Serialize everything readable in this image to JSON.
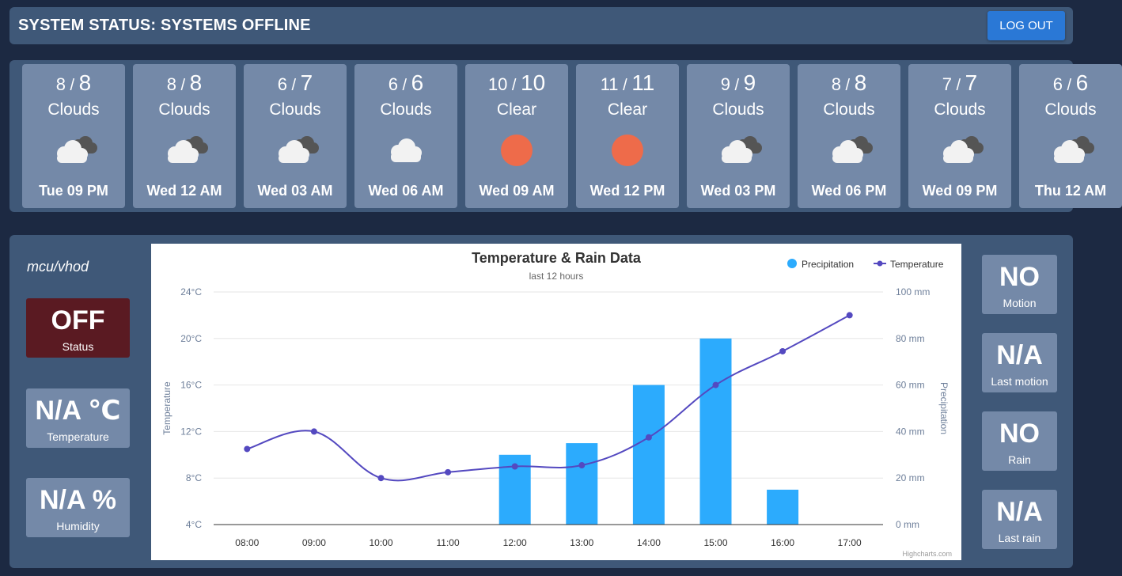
{
  "header": {
    "title": "SYSTEM STATUS: SYSTEMS OFFLINE",
    "logout_label": "LOG OUT"
  },
  "forecast": [
    {
      "low": "8",
      "high": "8",
      "condition": "Clouds",
      "icon": "cloud-sun-icon",
      "time": "Tue 09 PM"
    },
    {
      "low": "8",
      "high": "8",
      "condition": "Clouds",
      "icon": "cloud-sun-icon",
      "time": "Wed 12 AM"
    },
    {
      "low": "6",
      "high": "7",
      "condition": "Clouds",
      "icon": "cloud-sun-icon",
      "time": "Wed 03 AM"
    },
    {
      "low": "6",
      "high": "6",
      "condition": "Clouds",
      "icon": "cloud-icon",
      "time": "Wed 06 AM"
    },
    {
      "low": "10",
      "high": "10",
      "condition": "Clear",
      "icon": "sun-icon",
      "time": "Wed 09 AM"
    },
    {
      "low": "11",
      "high": "11",
      "condition": "Clear",
      "icon": "sun-icon",
      "time": "Wed 12 PM"
    },
    {
      "low": "9",
      "high": "9",
      "condition": "Clouds",
      "icon": "cloud-sun-icon",
      "time": "Wed 03 PM"
    },
    {
      "low": "8",
      "high": "8",
      "condition": "Clouds",
      "icon": "cloud-sun-icon",
      "time": "Wed 06 PM"
    },
    {
      "low": "7",
      "high": "7",
      "condition": "Clouds",
      "icon": "cloud-sun-icon",
      "time": "Wed 09 PM"
    },
    {
      "low": "6",
      "high": "6",
      "condition": "Clouds",
      "icon": "cloud-sun-icon",
      "time": "Thu 12 AM"
    }
  ],
  "device": {
    "topic": "mcu/vhod",
    "status": {
      "value": "OFF",
      "label": "Status"
    },
    "temperature": {
      "value": "N/A ℃",
      "label": "Temperature"
    },
    "humidity": {
      "value": "N/A %",
      "label": "Humidity"
    }
  },
  "sensors": {
    "motion": {
      "value": "NO",
      "label": "Motion"
    },
    "last_motion": {
      "value": "N/A",
      "label": "Last motion"
    },
    "rain": {
      "value": "NO",
      "label": "Rain"
    },
    "last_rain": {
      "value": "N/A",
      "label": "Last rain"
    }
  },
  "colors": {
    "sun": "#ee6b4a",
    "precip": "#2cabfd",
    "temp_line": "#5449c0",
    "status_off": "#5a1a22",
    "panel": "#3f5878",
    "tile": "#7489a8"
  },
  "chart_data": {
    "type": "bar",
    "title": "Temperature & Rain Data",
    "subtitle": "last 12 hours",
    "credits": "Highcharts.com",
    "categories": [
      "08:00",
      "09:00",
      "10:00",
      "11:00",
      "12:00",
      "13:00",
      "14:00",
      "15:00",
      "16:00",
      "17:00"
    ],
    "y_left": {
      "label": "Temperature",
      "ticks": [
        "4°C",
        "8°C",
        "12°C",
        "16°C",
        "20°C",
        "24°C"
      ],
      "range": [
        4,
        24
      ]
    },
    "y_right": {
      "label": "Precipitation",
      "ticks": [
        "0 mm",
        "20 mm",
        "40 mm",
        "60 mm",
        "80 mm",
        "100 mm"
      ],
      "range": [
        0,
        100
      ]
    },
    "series": [
      {
        "name": "Precipitation",
        "type": "column",
        "axis": "right",
        "values": [
          0,
          0,
          0,
          0,
          30,
          35,
          60,
          80,
          15,
          0
        ]
      },
      {
        "name": "Temperature",
        "type": "spline",
        "axis": "left",
        "values": [
          10.5,
          12,
          8,
          8.5,
          9,
          9.1,
          11.5,
          16,
          18.9,
          22
        ]
      }
    ],
    "legend": "top-right",
    "grid": true
  }
}
